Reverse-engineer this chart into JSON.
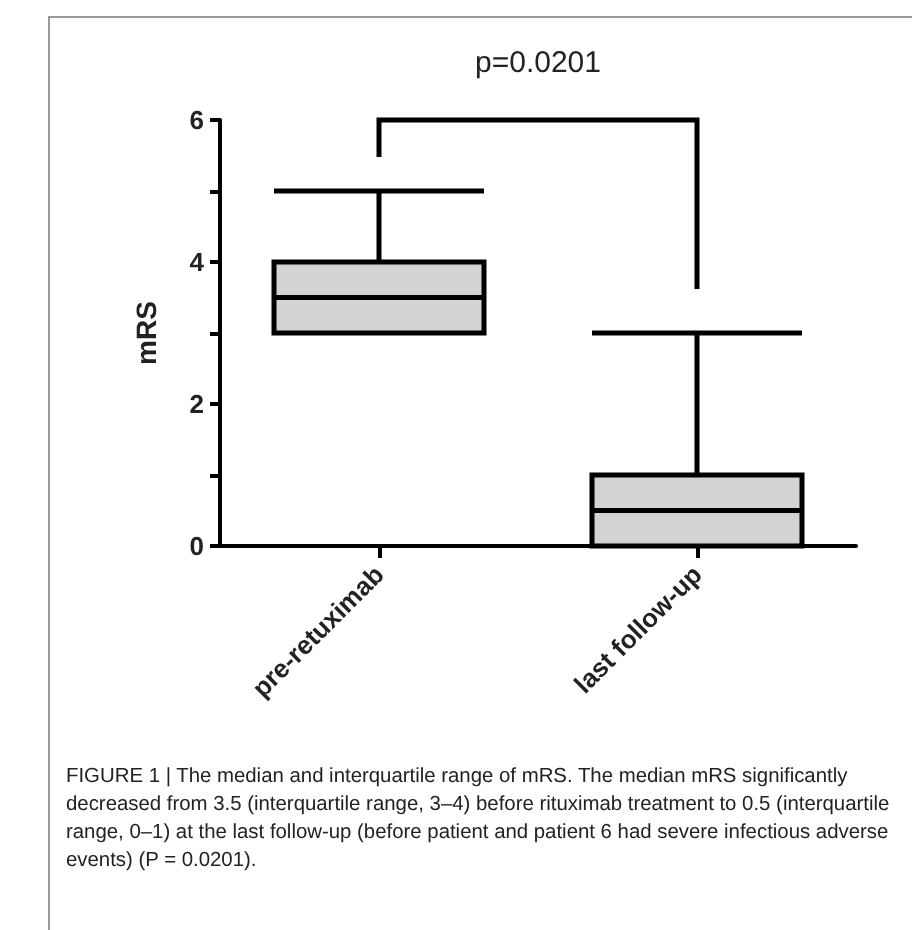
{
  "chart_data": {
    "type": "box",
    "categories": [
      "pre-retuximab",
      "last follow-up"
    ],
    "boxes": [
      {
        "low": 3,
        "q1": 3,
        "median": 3.5,
        "q3": 4,
        "high": 5
      },
      {
        "low": 0,
        "q1": 0,
        "median": 0.5,
        "q3": 1,
        "high": 3
      }
    ],
    "color": "#d3d3d3",
    "ylabel": "mRS",
    "ylim": [
      0,
      6
    ],
    "yticks": [
      0,
      {
        "value": 1,
        "label": null
      },
      2,
      {
        "value": 3,
        "label": null
      },
      4,
      {
        "value": 5,
        "label": null
      },
      6
    ],
    "annotations": [
      "p=0.0201",
      "FIGURE 1 | The median and interquartile range of mRS. The median mRS significantly decreased from 3.5 (interquartile range, 3–4) before rituximab treatment to 0.5 (interquartile range, 0–1) at the last follow-up (before patient and patient 6 had severe infectious adverse events) (P = 0.0201)."
    ]
  }
}
